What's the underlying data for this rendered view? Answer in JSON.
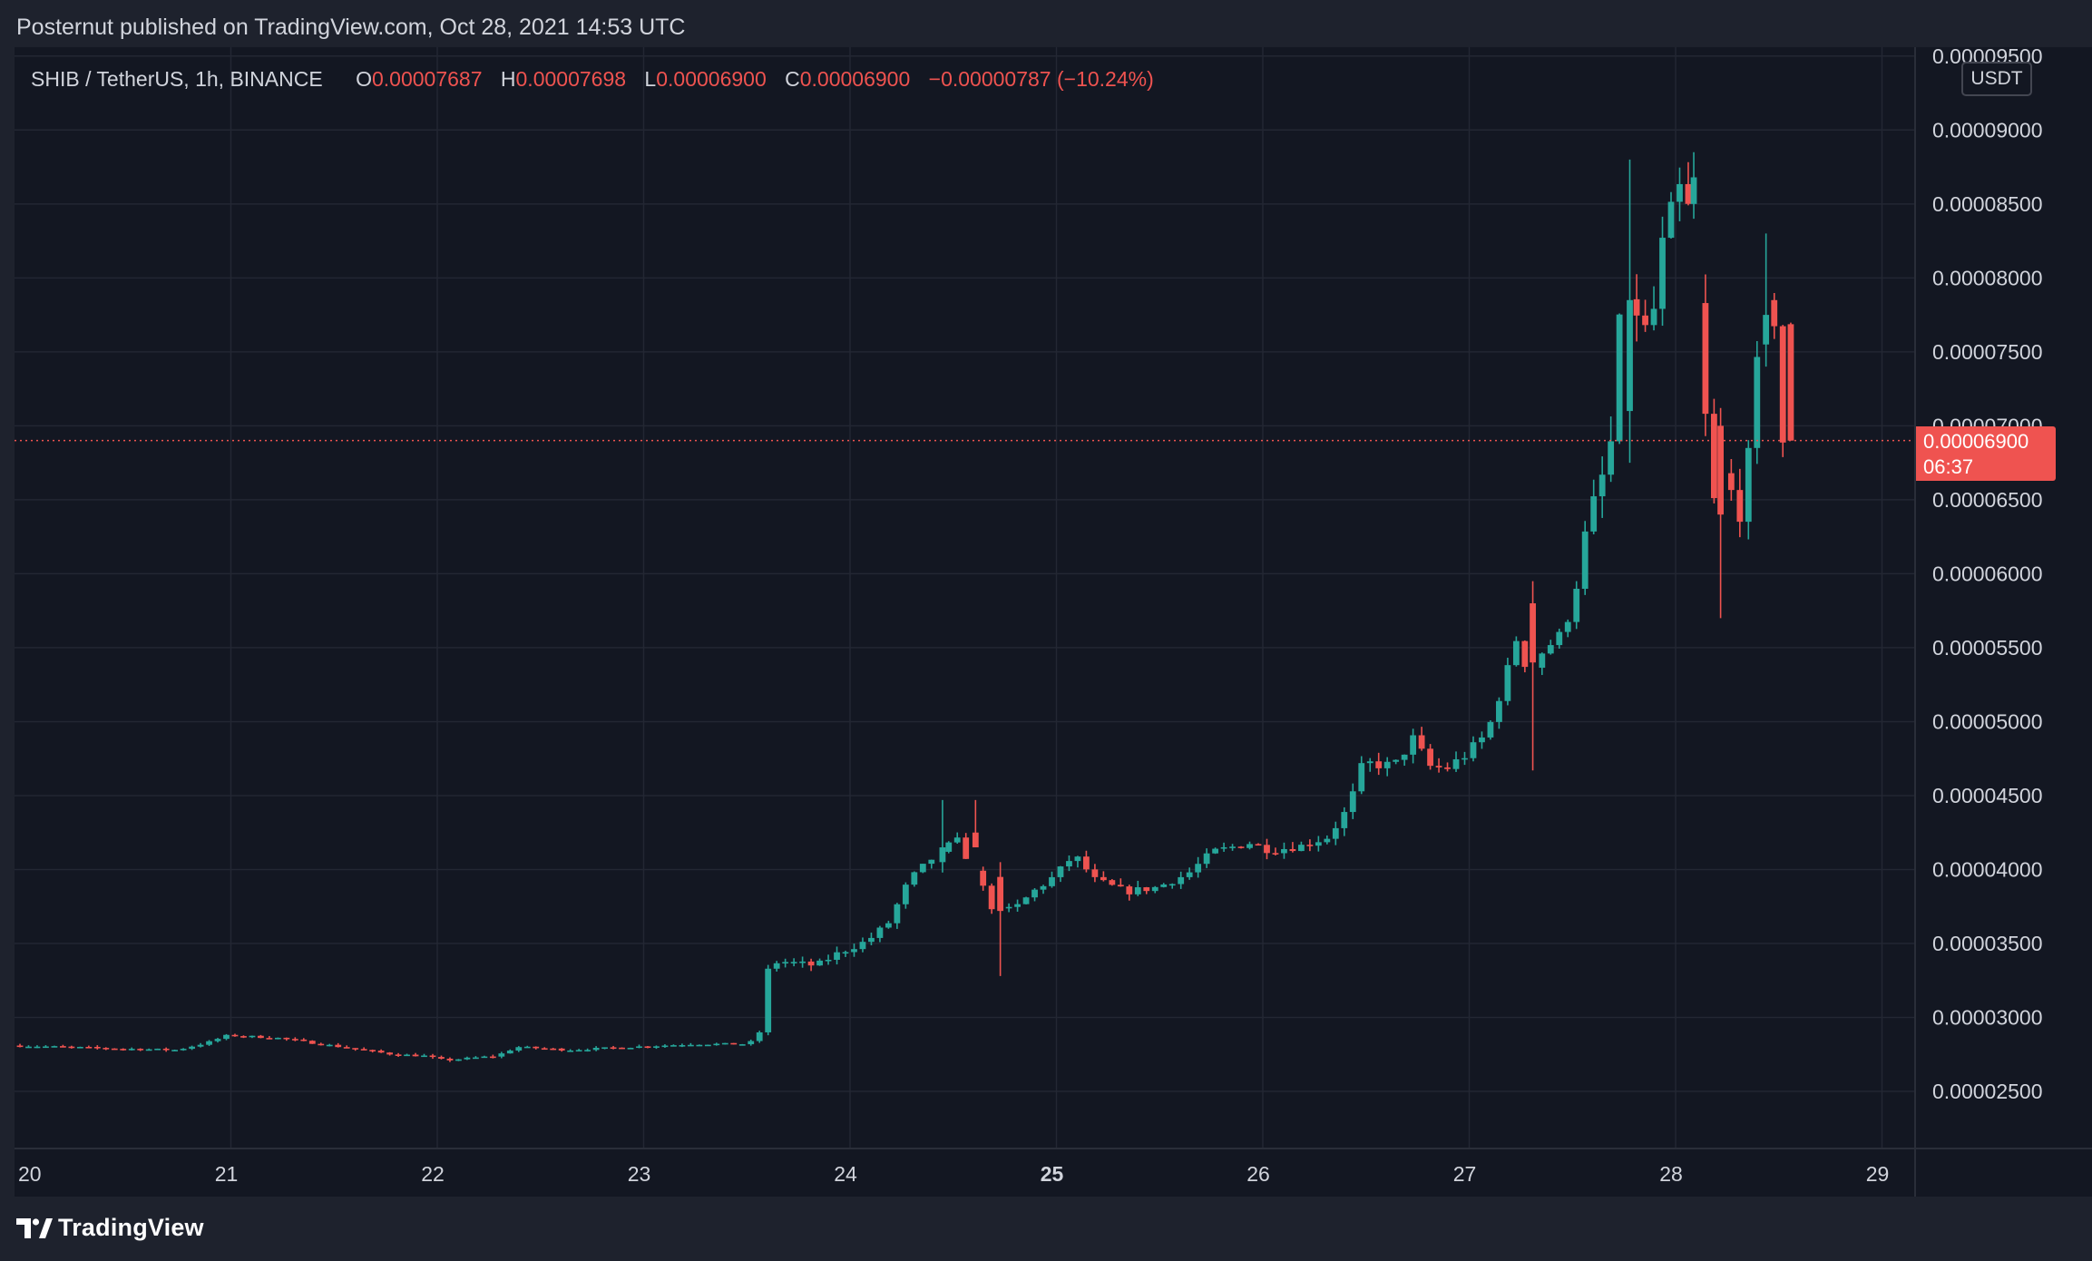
{
  "header": {
    "publisher_line": "Posternut published on TradingView.com, Oct 28, 2021 14:53 UTC"
  },
  "legend": {
    "symbol": "SHIB / TetherUS, 1h, BINANCE",
    "o_key": "O",
    "o_val": "0.00007687",
    "h_key": "H",
    "h_val": "0.00007698",
    "l_key": "L",
    "l_val": "0.00006900",
    "c_key": "C",
    "c_val": "0.00006900",
    "change": "−0.00000787 (−10.24%)"
  },
  "price_scale": {
    "currency": "USDT",
    "last_price": "0.00006900",
    "countdown": "06:37"
  },
  "footer": {
    "brand": "TradingView"
  },
  "colors": {
    "up": "#26a69a",
    "down": "#ef5350",
    "background": "#131722",
    "grid": "#232733",
    "text": "#d1d4dc"
  },
  "chart_data": {
    "type": "candlestick",
    "symbol": "SHIB / TetherUS",
    "interval": "1h",
    "exchange": "BINANCE",
    "ylim": [
      2.12e-05,
      9.56e-05
    ],
    "y_ticks": [
      "0.00002500",
      "0.00003000",
      "0.00003500",
      "0.00004000",
      "0.00004500",
      "0.00005000",
      "0.00005500",
      "0.00006000",
      "0.00006500",
      "0.00007000",
      "0.00007500",
      "0.00008000",
      "0.00008500",
      "0.00009000",
      "0.00009500"
    ],
    "x_ticks": [
      {
        "label": "20",
        "day": 20,
        "bold": false
      },
      {
        "label": "21",
        "day": 21,
        "bold": false
      },
      {
        "label": "22",
        "day": 22,
        "bold": false
      },
      {
        "label": "23",
        "day": 23,
        "bold": false
      },
      {
        "label": "24",
        "day": 24,
        "bold": false
      },
      {
        "label": "25",
        "day": 25,
        "bold": true
      },
      {
        "label": "26",
        "day": 26,
        "bold": false
      },
      {
        "label": "27",
        "day": 27,
        "bold": false
      },
      {
        "label": "28",
        "day": 28,
        "bold": false
      },
      {
        "label": "29",
        "day": 29,
        "bold": false
      }
    ],
    "x_start_day": 20,
    "x_end_day": 29.13,
    "last_price": 6.9e-05,
    "path": [
      [
        20.0,
        2.81e-05
      ],
      [
        20.5,
        2.79e-05
      ],
      [
        20.8,
        2.78e-05
      ],
      [
        20.95,
        2.83e-05
      ],
      [
        21.05,
        2.88e-05
      ],
      [
        21.3,
        2.86e-05
      ],
      [
        21.6,
        2.8e-05
      ],
      [
        21.85,
        2.75e-05
      ],
      [
        22.0,
        2.74e-05
      ],
      [
        22.1,
        2.71e-05
      ],
      [
        22.35,
        2.74e-05
      ],
      [
        22.45,
        2.8e-05
      ],
      [
        22.7,
        2.78e-05
      ],
      [
        23.0,
        2.8e-05
      ],
      [
        23.3,
        2.82e-05
      ],
      [
        23.55,
        2.82e-05
      ],
      [
        23.62,
        2.85e-05
      ],
      [
        23.67,
        3.35e-05
      ],
      [
        23.72,
        3.38e-05
      ],
      [
        23.9,
        3.35e-05
      ],
      [
        24.0,
        3.43e-05
      ],
      [
        24.15,
        3.52e-05
      ],
      [
        24.25,
        3.64e-05
      ],
      [
        24.35,
        3.93e-05
      ],
      [
        24.48,
        4.1e-05
      ],
      [
        24.58,
        4.2e-05
      ],
      [
        24.68,
        3.96e-05
      ],
      [
        24.75,
        3.75e-05
      ],
      [
        24.85,
        3.72e-05
      ],
      [
        24.95,
        3.85e-05
      ],
      [
        25.05,
        3.95e-05
      ],
      [
        25.15,
        4.1e-05
      ],
      [
        25.25,
        3.93e-05
      ],
      [
        25.4,
        3.85e-05
      ],
      [
        25.55,
        3.88e-05
      ],
      [
        25.7,
        3.97e-05
      ],
      [
        25.82,
        4.12e-05
      ],
      [
        26.0,
        4.18e-05
      ],
      [
        26.1,
        4.13e-05
      ],
      [
        26.25,
        4.16e-05
      ],
      [
        26.38,
        4.22e-05
      ],
      [
        26.48,
        4.42e-05
      ],
      [
        26.55,
        4.72e-05
      ],
      [
        26.7,
        4.7e-05
      ],
      [
        26.8,
        4.9e-05
      ],
      [
        26.86,
        4.7e-05
      ],
      [
        26.95,
        4.68e-05
      ],
      [
        27.05,
        4.78e-05
      ],
      [
        27.15,
        4.92e-05
      ],
      [
        27.25,
        5.35e-05
      ],
      [
        27.3,
        5.6e-05
      ],
      [
        27.35,
        5.3e-05
      ],
      [
        27.42,
        5.48e-05
      ],
      [
        27.52,
        5.6e-05
      ],
      [
        27.58,
        5.9e-05
      ],
      [
        27.63,
        6.3e-05
      ],
      [
        27.7,
        6.6e-05
      ],
      [
        27.75,
        6.88e-05
      ],
      [
        27.8,
        7.8e-05
      ],
      [
        27.86,
        7.9e-05
      ],
      [
        27.9,
        7.6e-05
      ],
      [
        27.95,
        7.7e-05
      ],
      [
        28.0,
        8.2e-05
      ],
      [
        28.05,
        8.45e-05
      ],
      [
        28.11,
        8.68e-05
      ],
      [
        28.17,
        7.78e-05
      ],
      [
        28.24,
        6.43e-05
      ],
      [
        28.3,
        6.72e-05
      ],
      [
        28.36,
        6.4e-05
      ],
      [
        28.4,
        6.5e-05
      ],
      [
        28.45,
        7.28e-05
      ],
      [
        28.5,
        7.85e-05
      ],
      [
        28.56,
        7.69e-05
      ],
      [
        28.58,
        6.9e-05
      ]
    ],
    "notable_candles": [
      {
        "day": 24.47,
        "open": 4.05e-05,
        "high": 4.47e-05,
        "low": 3.98e-05,
        "close": 4.15e-05
      },
      {
        "day": 24.63,
        "open": 4.25e-05,
        "high": 4.47e-05,
        "low": 4.2e-05,
        "close": 4.15e-05
      },
      {
        "day": 24.75,
        "open": 3.95e-05,
        "high": 4.05e-05,
        "low": 3.28e-05,
        "close": 3.72e-05
      },
      {
        "day": 27.33,
        "open": 5.8e-05,
        "high": 5.95e-05,
        "low": 4.67e-05,
        "close": 5.4e-05
      },
      {
        "day": 27.8,
        "open": 7.1e-05,
        "high": 8.8e-05,
        "low": 6.75e-05,
        "close": 7.85e-05
      },
      {
        "day": 28.11,
        "open": 8.5e-05,
        "high": 8.85e-05,
        "low": 8.4e-05,
        "close": 8.68e-05
      },
      {
        "day": 28.24,
        "open": 7e-05,
        "high": 7.12e-05,
        "low": 5.7e-05,
        "close": 6.4e-05
      },
      {
        "day": 28.46,
        "open": 7.55e-05,
        "high": 8.3e-05,
        "low": 7.4e-05,
        "close": 7.75e-05
      },
      {
        "day": 28.58,
        "open": 7.687e-05,
        "high": 7.698e-05,
        "low": 6.9e-05,
        "close": 6.9e-05
      }
    ]
  }
}
